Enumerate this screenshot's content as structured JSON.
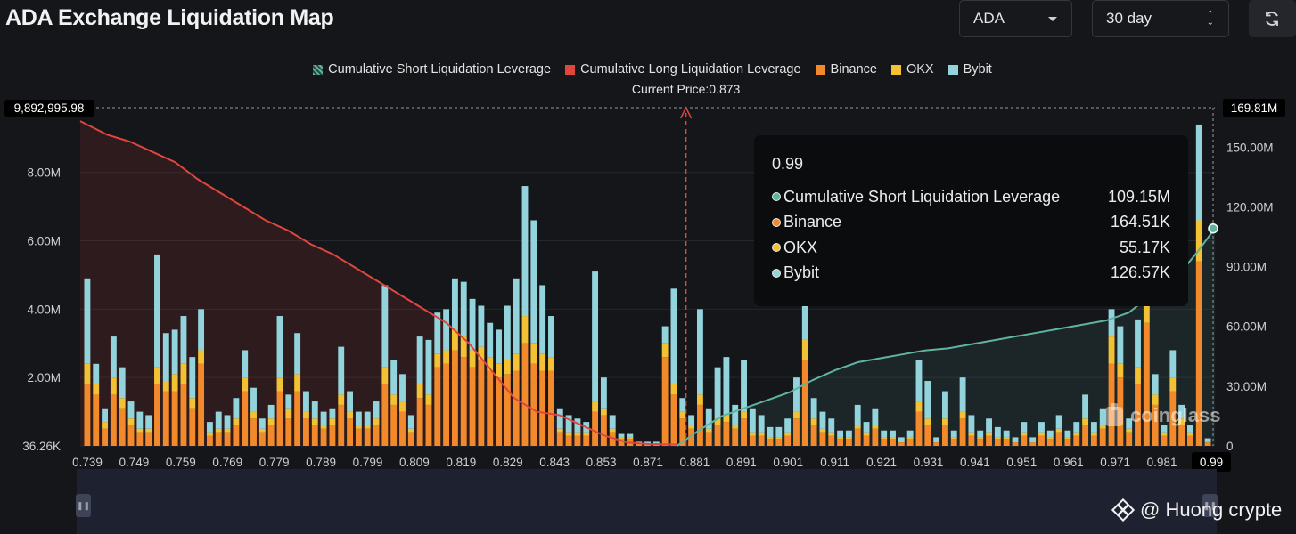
{
  "header": {
    "title": "ADA Exchange Liquidation Map",
    "asset_select": "ADA",
    "range_select": "30 day"
  },
  "legend": [
    {
      "label": "Cumulative Short Liquidation Leverage",
      "color": "#5fb3a0",
      "swatch": "pattern"
    },
    {
      "label": "Cumulative Long Liquidation Leverage",
      "color": "#e0453e",
      "swatch": "solid"
    },
    {
      "label": "Binance",
      "color": "#f28a2c",
      "swatch": "solid"
    },
    {
      "label": "OKX",
      "color": "#f3c234",
      "swatch": "solid"
    },
    {
      "label": "Bybit",
      "color": "#93d4dc",
      "swatch": "solid"
    }
  ],
  "current_price_label": "Current Price:0.873",
  "tooltip": {
    "title": "0.99",
    "rows": [
      {
        "label": "Cumulative Short Liquidation Leverage",
        "value": "109.15M",
        "color": "#5fb3a0"
      },
      {
        "label": "Binance",
        "value": "164.51K",
        "color": "#f28a2c"
      },
      {
        "label": "OKX",
        "value": "55.17K",
        "color": "#f3c234"
      },
      {
        "label": "Bybit",
        "value": "126.57K",
        "color": "#93d4dc"
      }
    ]
  },
  "watermark": "coinglass",
  "credit": "@ Huong crypte",
  "chart_data": {
    "type": "bar",
    "x_tick_labels": [
      "0.739",
      "0.749",
      "0.759",
      "0.769",
      "0.779",
      "0.789",
      "0.799",
      "0.809",
      "0.819",
      "0.829",
      "0.843",
      "0.853",
      "0.871",
      "0.881",
      "0.891",
      "0.901",
      "0.911",
      "0.921",
      "0.931",
      "0.941",
      "0.951",
      "0.961",
      "0.971",
      "0.981",
      "0.99"
    ],
    "x_highlight_label": "0.99",
    "x_range": [
      0.739,
      0.99
    ],
    "y_left": {
      "ticks": [
        "36.26K",
        "2.00M",
        "4.00M",
        "6.00M",
        "8.00M"
      ],
      "range": [
        36260,
        9892995.98
      ],
      "top_label": "9,892,995.98"
    },
    "y_right": {
      "ticks": [
        "0",
        "30.00M",
        "60.00M",
        "90.00M",
        "120.00M",
        "150.00M"
      ],
      "range": [
        0,
        169810000
      ],
      "top_label": "169.81M"
    },
    "current_price": 0.873,
    "series": [
      {
        "name": "Binance",
        "color": "#f28a2c",
        "values": [
          1.8,
          1.5,
          0.5,
          1.5,
          1.1,
          0.6,
          0.4,
          0.4,
          1.8,
          1.6,
          1.6,
          1.8,
          1.1,
          2.4,
          0.3,
          0.4,
          0.4,
          0.6,
          1.6,
          0.8,
          0.4,
          0.6,
          1.6,
          0.8,
          1.6,
          0.8,
          0.6,
          0.5,
          0.6,
          1.2,
          0.8,
          0.5,
          0.5,
          0.6,
          1.8,
          1.2,
          1.0,
          0.4,
          1.4,
          1.2,
          2.3,
          2.4,
          2.8,
          2.6,
          2.3,
          2.5,
          2.2,
          2.0,
          2.1,
          2.2,
          3.0,
          2.4,
          2.2,
          2.2,
          0.4,
          0.3,
          0.3,
          0.3,
          1.0,
          0.9,
          0.4,
          0.2,
          0.2,
          0.05,
          0.05,
          0.05,
          2.6,
          1.5,
          0.8,
          0.5,
          1.2,
          0.4,
          0.6,
          0.7,
          0.5,
          0.8,
          0.3,
          0.3,
          0.2,
          0.2,
          0.3,
          0.8,
          2.5,
          0.6,
          0.4,
          0.3,
          0.2,
          0.2,
          0.5,
          0.3,
          0.5,
          0.2,
          0.2,
          0.1,
          0.2,
          1.0,
          0.6,
          0.1,
          0.6,
          0.2,
          0.8,
          0.3,
          0.2,
          0.3,
          0.2,
          0.2,
          0.1,
          0.3,
          0.1,
          0.3,
          0.2,
          0.4,
          0.2,
          0.3,
          0.6,
          0.3,
          0.5,
          2.4,
          2.0,
          0.4,
          1.8,
          3.6,
          1.2,
          0.3,
          1.6,
          0.6,
          0.3,
          5.4,
          0.1
        ],
        "bar_count": 129
      },
      {
        "name": "OKX",
        "color": "#f3c234",
        "values": [
          0.6,
          0.3,
          0.2,
          0.5,
          0.3,
          0.2,
          0.1,
          0.1,
          0.5,
          0.3,
          0.5,
          0.6,
          0.3,
          0.4,
          0.1,
          0.1,
          0.1,
          0.2,
          0.4,
          0.2,
          0.1,
          0.2,
          0.4,
          0.3,
          0.5,
          0.2,
          0.2,
          0.1,
          0.2,
          0.3,
          0.2,
          0.1,
          0.1,
          0.2,
          0.5,
          0.3,
          0.3,
          0.1,
          0.4,
          0.3,
          0.4,
          0.4,
          0.6,
          0.6,
          0.5,
          0.4,
          0.4,
          0.4,
          0.4,
          0.5,
          0.8,
          0.6,
          0.5,
          0.4,
          0.1,
          0.1,
          0.1,
          0.1,
          0.3,
          0.2,
          0.1,
          0.05,
          0.05,
          0.02,
          0.02,
          0.02,
          0.4,
          0.3,
          0.2,
          0.1,
          0.3,
          0.1,
          0.2,
          0.2,
          0.1,
          0.2,
          0.1,
          0.1,
          0.05,
          0.05,
          0.1,
          0.2,
          0.6,
          0.2,
          0.1,
          0.1,
          0.05,
          0.05,
          0.1,
          0.1,
          0.1,
          0.05,
          0.05,
          0.05,
          0.05,
          0.3,
          0.2,
          0.05,
          0.2,
          0.05,
          0.2,
          0.1,
          0.05,
          0.1,
          0.05,
          0.05,
          0.05,
          0.1,
          0.05,
          0.1,
          0.05,
          0.1,
          0.05,
          0.1,
          0.2,
          0.1,
          0.1,
          0.8,
          0.4,
          0.1,
          0.5,
          0.8,
          0.3,
          0.1,
          0.4,
          0.2,
          0.1,
          1.2,
          0.02
        ],
        "bar_count": 129
      },
      {
        "name": "Bybit",
        "color": "#93d4dc",
        "values": [
          2.5,
          0.6,
          0.4,
          1.2,
          0.9,
          0.5,
          0.5,
          0.4,
          3.3,
          1.4,
          1.3,
          1.4,
          1.2,
          1.2,
          0.3,
          0.5,
          0.4,
          0.6,
          0.8,
          0.7,
          0.3,
          0.4,
          1.8,
          0.4,
          1.2,
          0.6,
          0.5,
          0.4,
          0.3,
          1.4,
          0.6,
          0.4,
          0.4,
          0.5,
          2.4,
          1.0,
          0.8,
          0.4,
          1.4,
          1.6,
          1.2,
          1.2,
          1.5,
          1.6,
          1.5,
          1.2,
          1.0,
          1.0,
          1.6,
          2.2,
          3.8,
          3.6,
          2.0,
          1.2,
          0.6,
          0.5,
          0.4,
          0.3,
          3.8,
          0.9,
          0.4,
          0.1,
          0.1,
          0.05,
          0.05,
          0.05,
          0.5,
          2.8,
          0.4,
          0.3,
          2.5,
          0.6,
          1.5,
          1.7,
          0.6,
          1.5,
          0.7,
          0.5,
          0.3,
          0.3,
          0.4,
          1.0,
          1.5,
          0.6,
          0.5,
          0.4,
          0.2,
          0.2,
          0.6,
          0.3,
          0.5,
          0.2,
          0.2,
          0.1,
          0.2,
          1.2,
          1.1,
          0.1,
          0.8,
          0.2,
          1.0,
          0.5,
          0.2,
          0.4,
          0.3,
          0.2,
          0.1,
          0.3,
          0.1,
          0.3,
          0.2,
          0.4,
          0.2,
          0.3,
          0.7,
          0.3,
          0.5,
          0.8,
          1.1,
          0.3,
          1.4,
          1.8,
          0.6,
          0.2,
          0.8,
          0.4,
          0.2,
          2.8,
          0.1
        ],
        "bar_count": 129
      }
    ],
    "cumulative_long": {
      "name": "Cumulative Long Liquidation Leverage",
      "axis": "left",
      "x": [
        0.739,
        0.745,
        0.75,
        0.755,
        0.76,
        0.765,
        0.77,
        0.775,
        0.78,
        0.785,
        0.79,
        0.795,
        0.8,
        0.805,
        0.81,
        0.815,
        0.82,
        0.825,
        0.83,
        0.835,
        0.84,
        0.845,
        0.85,
        0.855,
        0.86,
        0.865,
        0.871
      ],
      "y": [
        9.5,
        9.1,
        8.9,
        8.6,
        8.3,
        7.8,
        7.4,
        7.0,
        6.6,
        6.3,
        5.9,
        5.6,
        5.2,
        4.8,
        4.4,
        4.0,
        3.6,
        3.0,
        2.2,
        1.4,
        1.0,
        0.9,
        0.6,
        0.3,
        0.1,
        0.05,
        0.04
      ]
    },
    "cumulative_short": {
      "name": "Cumulative Short Liquidation Leverage",
      "axis": "right",
      "x": [
        0.871,
        0.876,
        0.881,
        0.886,
        0.891,
        0.896,
        0.901,
        0.906,
        0.911,
        0.916,
        0.921,
        0.926,
        0.931,
        0.936,
        0.941,
        0.946,
        0.951,
        0.956,
        0.961,
        0.966,
        0.971,
        0.976,
        0.981,
        0.986,
        0.99
      ],
      "y": [
        0,
        8,
        15,
        19,
        23,
        27,
        33,
        38,
        42,
        44,
        46,
        48,
        49,
        51,
        53,
        55,
        57,
        59,
        61,
        63,
        67,
        76,
        83,
        97,
        109.15
      ]
    },
    "tooltip_x": 0.99
  }
}
